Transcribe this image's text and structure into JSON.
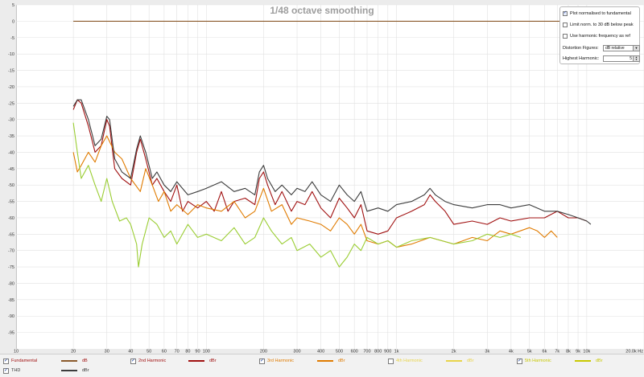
{
  "chart_data": {
    "type": "line",
    "title": "1/48 octave smoothing",
    "x_scale": "log",
    "x_unit": "Hz",
    "xlim": [
      10,
      20000
    ],
    "ylim": [
      -100,
      5
    ],
    "grid": true,
    "y_ticks": [
      "5",
      "0",
      "-5",
      "-10",
      "-15",
      "-20",
      "-25",
      "-30",
      "-35",
      "-40",
      "-45",
      "-50",
      "-55",
      "-60",
      "-65",
      "-70",
      "-75",
      "-80",
      "-85",
      "-90",
      "-95"
    ],
    "y_tick_values": [
      5,
      0,
      -5,
      -10,
      -15,
      -20,
      -25,
      -30,
      -35,
      -40,
      -45,
      -50,
      -55,
      -60,
      -65,
      -70,
      -75,
      -80,
      -85,
      -90,
      -95
    ],
    "x_ticks": [
      "10",
      "20",
      "30",
      "40",
      "50",
      "60",
      "70",
      "80",
      "90",
      "100",
      "200",
      "300",
      "400",
      "500",
      "600",
      "700",
      "800",
      "900",
      "1k",
      "2k",
      "3k",
      "4k",
      "5k",
      "6k",
      "7k",
      "8k",
      "9k",
      "10k",
      "20.0k Hz"
    ],
    "x_tick_values": [
      10,
      20,
      30,
      40,
      50,
      60,
      70,
      80,
      90,
      100,
      200,
      300,
      400,
      500,
      600,
      700,
      800,
      900,
      1000,
      2000,
      3000,
      4000,
      5000,
      6000,
      7000,
      8000,
      9000,
      10000,
      20000
    ],
    "series": [
      {
        "name": "Fundamental",
        "color": "#8b5a2b",
        "points": [
          [
            20,
            0
          ],
          [
            10500,
            0
          ]
        ]
      },
      {
        "name": "2nd Harmonic",
        "color": "#a01010",
        "points": [
          [
            20,
            -27
          ],
          [
            21,
            -24
          ],
          [
            22,
            -25
          ],
          [
            24,
            -32
          ],
          [
            26,
            -40
          ],
          [
            28,
            -38
          ],
          [
            30,
            -30
          ],
          [
            31,
            -32
          ],
          [
            33,
            -45
          ],
          [
            36,
            -48
          ],
          [
            40,
            -50
          ],
          [
            43,
            -40
          ],
          [
            45,
            -36
          ],
          [
            48,
            -42
          ],
          [
            52,
            -50
          ],
          [
            55,
            -48
          ],
          [
            60,
            -52
          ],
          [
            65,
            -55
          ],
          [
            70,
            -50
          ],
          [
            75,
            -58
          ],
          [
            80,
            -55
          ],
          [
            90,
            -57
          ],
          [
            100,
            -55
          ],
          [
            110,
            -58
          ],
          [
            120,
            -52
          ],
          [
            130,
            -58
          ],
          [
            140,
            -55
          ],
          [
            160,
            -54
          ],
          [
            180,
            -56
          ],
          [
            190,
            -48
          ],
          [
            200,
            -46
          ],
          [
            210,
            -50
          ],
          [
            230,
            -56
          ],
          [
            250,
            -52
          ],
          [
            280,
            -58
          ],
          [
            300,
            -55
          ],
          [
            330,
            -56
          ],
          [
            360,
            -52
          ],
          [
            400,
            -57
          ],
          [
            450,
            -60
          ],
          [
            500,
            -54
          ],
          [
            550,
            -57
          ],
          [
            600,
            -60
          ],
          [
            650,
            -56
          ],
          [
            700,
            -64
          ],
          [
            800,
            -65
          ],
          [
            900,
            -64
          ],
          [
            1000,
            -60
          ],
          [
            1200,
            -58
          ],
          [
            1400,
            -56
          ],
          [
            1500,
            -53
          ],
          [
            1600,
            -55
          ],
          [
            1800,
            -58
          ],
          [
            2000,
            -62
          ],
          [
            2500,
            -61
          ],
          [
            3000,
            -62
          ],
          [
            3500,
            -60
          ],
          [
            4000,
            -61
          ],
          [
            5000,
            -60
          ],
          [
            6000,
            -60
          ],
          [
            7000,
            -58
          ],
          [
            8000,
            -60
          ],
          [
            9000,
            -60
          ],
          [
            10000,
            -61
          ]
        ]
      },
      {
        "name": "3rd Harmonic",
        "color": "#e07b00",
        "points": [
          [
            20,
            -40
          ],
          [
            21,
            -46
          ],
          [
            22,
            -44
          ],
          [
            24,
            -40
          ],
          [
            26,
            -43
          ],
          [
            28,
            -38
          ],
          [
            30,
            -35
          ],
          [
            33,
            -40
          ],
          [
            36,
            -42
          ],
          [
            40,
            -48
          ],
          [
            45,
            -52
          ],
          [
            48,
            -45
          ],
          [
            52,
            -50
          ],
          [
            56,
            -55
          ],
          [
            60,
            -52
          ],
          [
            65,
            -58
          ],
          [
            70,
            -56
          ],
          [
            80,
            -59
          ],
          [
            90,
            -56
          ],
          [
            100,
            -57
          ],
          [
            120,
            -58
          ],
          [
            140,
            -55
          ],
          [
            160,
            -60
          ],
          [
            180,
            -58
          ],
          [
            200,
            -51
          ],
          [
            220,
            -58
          ],
          [
            250,
            -56
          ],
          [
            280,
            -62
          ],
          [
            300,
            -60
          ],
          [
            350,
            -61
          ],
          [
            400,
            -62
          ],
          [
            450,
            -64
          ],
          [
            500,
            -60
          ],
          [
            550,
            -62
          ],
          [
            600,
            -65
          ],
          [
            650,
            -62
          ],
          [
            700,
            -67
          ],
          [
            800,
            -68
          ],
          [
            900,
            -67
          ],
          [
            1000,
            -69
          ],
          [
            1200,
            -68
          ],
          [
            1500,
            -66
          ],
          [
            2000,
            -68
          ],
          [
            2500,
            -66
          ],
          [
            3000,
            -67
          ],
          [
            3500,
            -64
          ],
          [
            4000,
            -65
          ],
          [
            5000,
            -63
          ],
          [
            5500,
            -64
          ],
          [
            6000,
            -66
          ],
          [
            6500,
            -64
          ],
          [
            7000,
            -66
          ]
        ]
      },
      {
        "name": "5th Harmonic",
        "color": "#9acd32",
        "points": [
          [
            20,
            -31
          ],
          [
            21,
            -40
          ],
          [
            22,
            -48
          ],
          [
            24,
            -44
          ],
          [
            26,
            -50
          ],
          [
            28,
            -55
          ],
          [
            30,
            -48
          ],
          [
            32,
            -55
          ],
          [
            35,
            -61
          ],
          [
            38,
            -60
          ],
          [
            40,
            -62
          ],
          [
            43,
            -68
          ],
          [
            44,
            -75
          ],
          [
            46,
            -68
          ],
          [
            50,
            -60
          ],
          [
            55,
            -62
          ],
          [
            60,
            -66
          ],
          [
            65,
            -64
          ],
          [
            70,
            -68
          ],
          [
            80,
            -62
          ],
          [
            90,
            -66
          ],
          [
            100,
            -65
          ],
          [
            120,
            -67
          ],
          [
            140,
            -63
          ],
          [
            160,
            -68
          ],
          [
            180,
            -66
          ],
          [
            200,
            -60
          ],
          [
            220,
            -64
          ],
          [
            250,
            -68
          ],
          [
            280,
            -66
          ],
          [
            300,
            -70
          ],
          [
            350,
            -68
          ],
          [
            400,
            -72
          ],
          [
            450,
            -70
          ],
          [
            500,
            -75
          ],
          [
            550,
            -72
          ],
          [
            600,
            -68
          ],
          [
            650,
            -70
          ],
          [
            700,
            -66
          ],
          [
            800,
            -68
          ],
          [
            900,
            -67
          ],
          [
            1000,
            -69
          ],
          [
            1200,
            -67
          ],
          [
            1500,
            -66
          ],
          [
            2000,
            -68
          ],
          [
            2500,
            -67
          ],
          [
            3000,
            -65
          ],
          [
            3500,
            -66
          ],
          [
            4000,
            -65
          ],
          [
            4500,
            -66
          ]
        ]
      },
      {
        "name": "THD",
        "color": "#3c3c3c",
        "points": [
          [
            20,
            -26
          ],
          [
            21,
            -24
          ],
          [
            22,
            -24
          ],
          [
            24,
            -30
          ],
          [
            26,
            -38
          ],
          [
            28,
            -36
          ],
          [
            30,
            -29
          ],
          [
            31,
            -30
          ],
          [
            33,
            -42
          ],
          [
            36,
            -46
          ],
          [
            40,
            -48
          ],
          [
            43,
            -39
          ],
          [
            45,
            -35
          ],
          [
            48,
            -40
          ],
          [
            52,
            -48
          ],
          [
            55,
            -46
          ],
          [
            60,
            -50
          ],
          [
            65,
            -52
          ],
          [
            70,
            -49
          ],
          [
            80,
            -53
          ],
          [
            90,
            -52
          ],
          [
            100,
            -51
          ],
          [
            120,
            -49
          ],
          [
            140,
            -52
          ],
          [
            160,
            -51
          ],
          [
            180,
            -53
          ],
          [
            190,
            -46
          ],
          [
            200,
            -44
          ],
          [
            210,
            -48
          ],
          [
            230,
            -52
          ],
          [
            250,
            -50
          ],
          [
            280,
            -53
          ],
          [
            300,
            -51
          ],
          [
            330,
            -52
          ],
          [
            360,
            -49
          ],
          [
            400,
            -53
          ],
          [
            450,
            -55
          ],
          [
            500,
            -50
          ],
          [
            550,
            -53
          ],
          [
            600,
            -55
          ],
          [
            650,
            -52
          ],
          [
            700,
            -58
          ],
          [
            800,
            -57
          ],
          [
            900,
            -58
          ],
          [
            1000,
            -56
          ],
          [
            1200,
            -55
          ],
          [
            1400,
            -53
          ],
          [
            1500,
            -51
          ],
          [
            1600,
            -53
          ],
          [
            1800,
            -55
          ],
          [
            2000,
            -56
          ],
          [
            2500,
            -57
          ],
          [
            3000,
            -56
          ],
          [
            3500,
            -56
          ],
          [
            4000,
            -57
          ],
          [
            5000,
            -56
          ],
          [
            6000,
            -58
          ],
          [
            7000,
            -58
          ],
          [
            8000,
            -59
          ],
          [
            9000,
            -60
          ],
          [
            10000,
            -61
          ],
          [
            10500,
            -62
          ]
        ]
      }
    ]
  },
  "options": {
    "plot_normalised_label": "Plot normalised to fundamental",
    "plot_normalised_checked": true,
    "limit_norm_label": "Limit norm. to 30 dB below peak",
    "limit_norm_checked": false,
    "use_harmonic_label": "Use harmonic frequency as ref",
    "use_harmonic_checked": false,
    "distortion_figures_label": "Distortion Figures:",
    "distortion_figures_value": "dB relative",
    "highest_harmonic_label": "Highest Harmonic:",
    "highest_harmonic_value": "5"
  },
  "legend": {
    "items": [
      {
        "name": "Fundamental",
        "unit": "dB",
        "color": "#8b5a2b",
        "checked": true
      },
      {
        "name": "2nd Harmonic",
        "unit": "dBr",
        "color": "#a01010",
        "checked": true
      },
      {
        "name": "3rd Harmonic",
        "unit": "dBr",
        "color": "#e07b00",
        "checked": true
      },
      {
        "name": "4th Harmonic",
        "unit": "dBr",
        "color": "#e8d44a",
        "checked": false
      },
      {
        "name": "5th Harmonic",
        "unit": "dBr",
        "color": "#c8c800",
        "checked": true
      },
      {
        "name": "THD",
        "unit": "dBr",
        "color": "#3c3c3c",
        "checked": true
      }
    ]
  }
}
